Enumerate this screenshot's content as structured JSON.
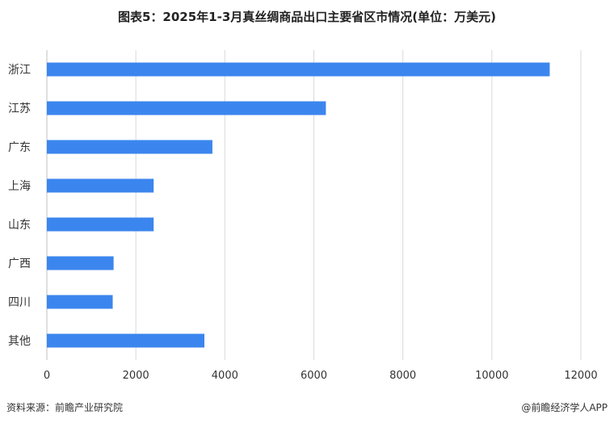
{
  "title": "图表5：2025年1-3月真丝绸商品出口主要省区市情况(单位：万美元)",
  "source": "资料来源：前瞻产业研究院",
  "brand": "@前瞻经济学人APP",
  "colors": {
    "bar": "#3b86ee",
    "grid": "#d9d9d9",
    "text": "#333333"
  },
  "chart_data": {
    "type": "bar",
    "orientation": "horizontal",
    "categories": [
      "浙江",
      "江苏",
      "广东",
      "上海",
      "山东",
      "广西",
      "四川",
      "其他"
    ],
    "values": [
      11300,
      6270,
      3720,
      2400,
      2400,
      1500,
      1480,
      3540
    ],
    "xlim": [
      0,
      12000
    ],
    "xticks": [
      "0",
      "2000",
      "4000",
      "6000",
      "8000",
      "10000",
      "12000"
    ],
    "grid": "vertical"
  }
}
